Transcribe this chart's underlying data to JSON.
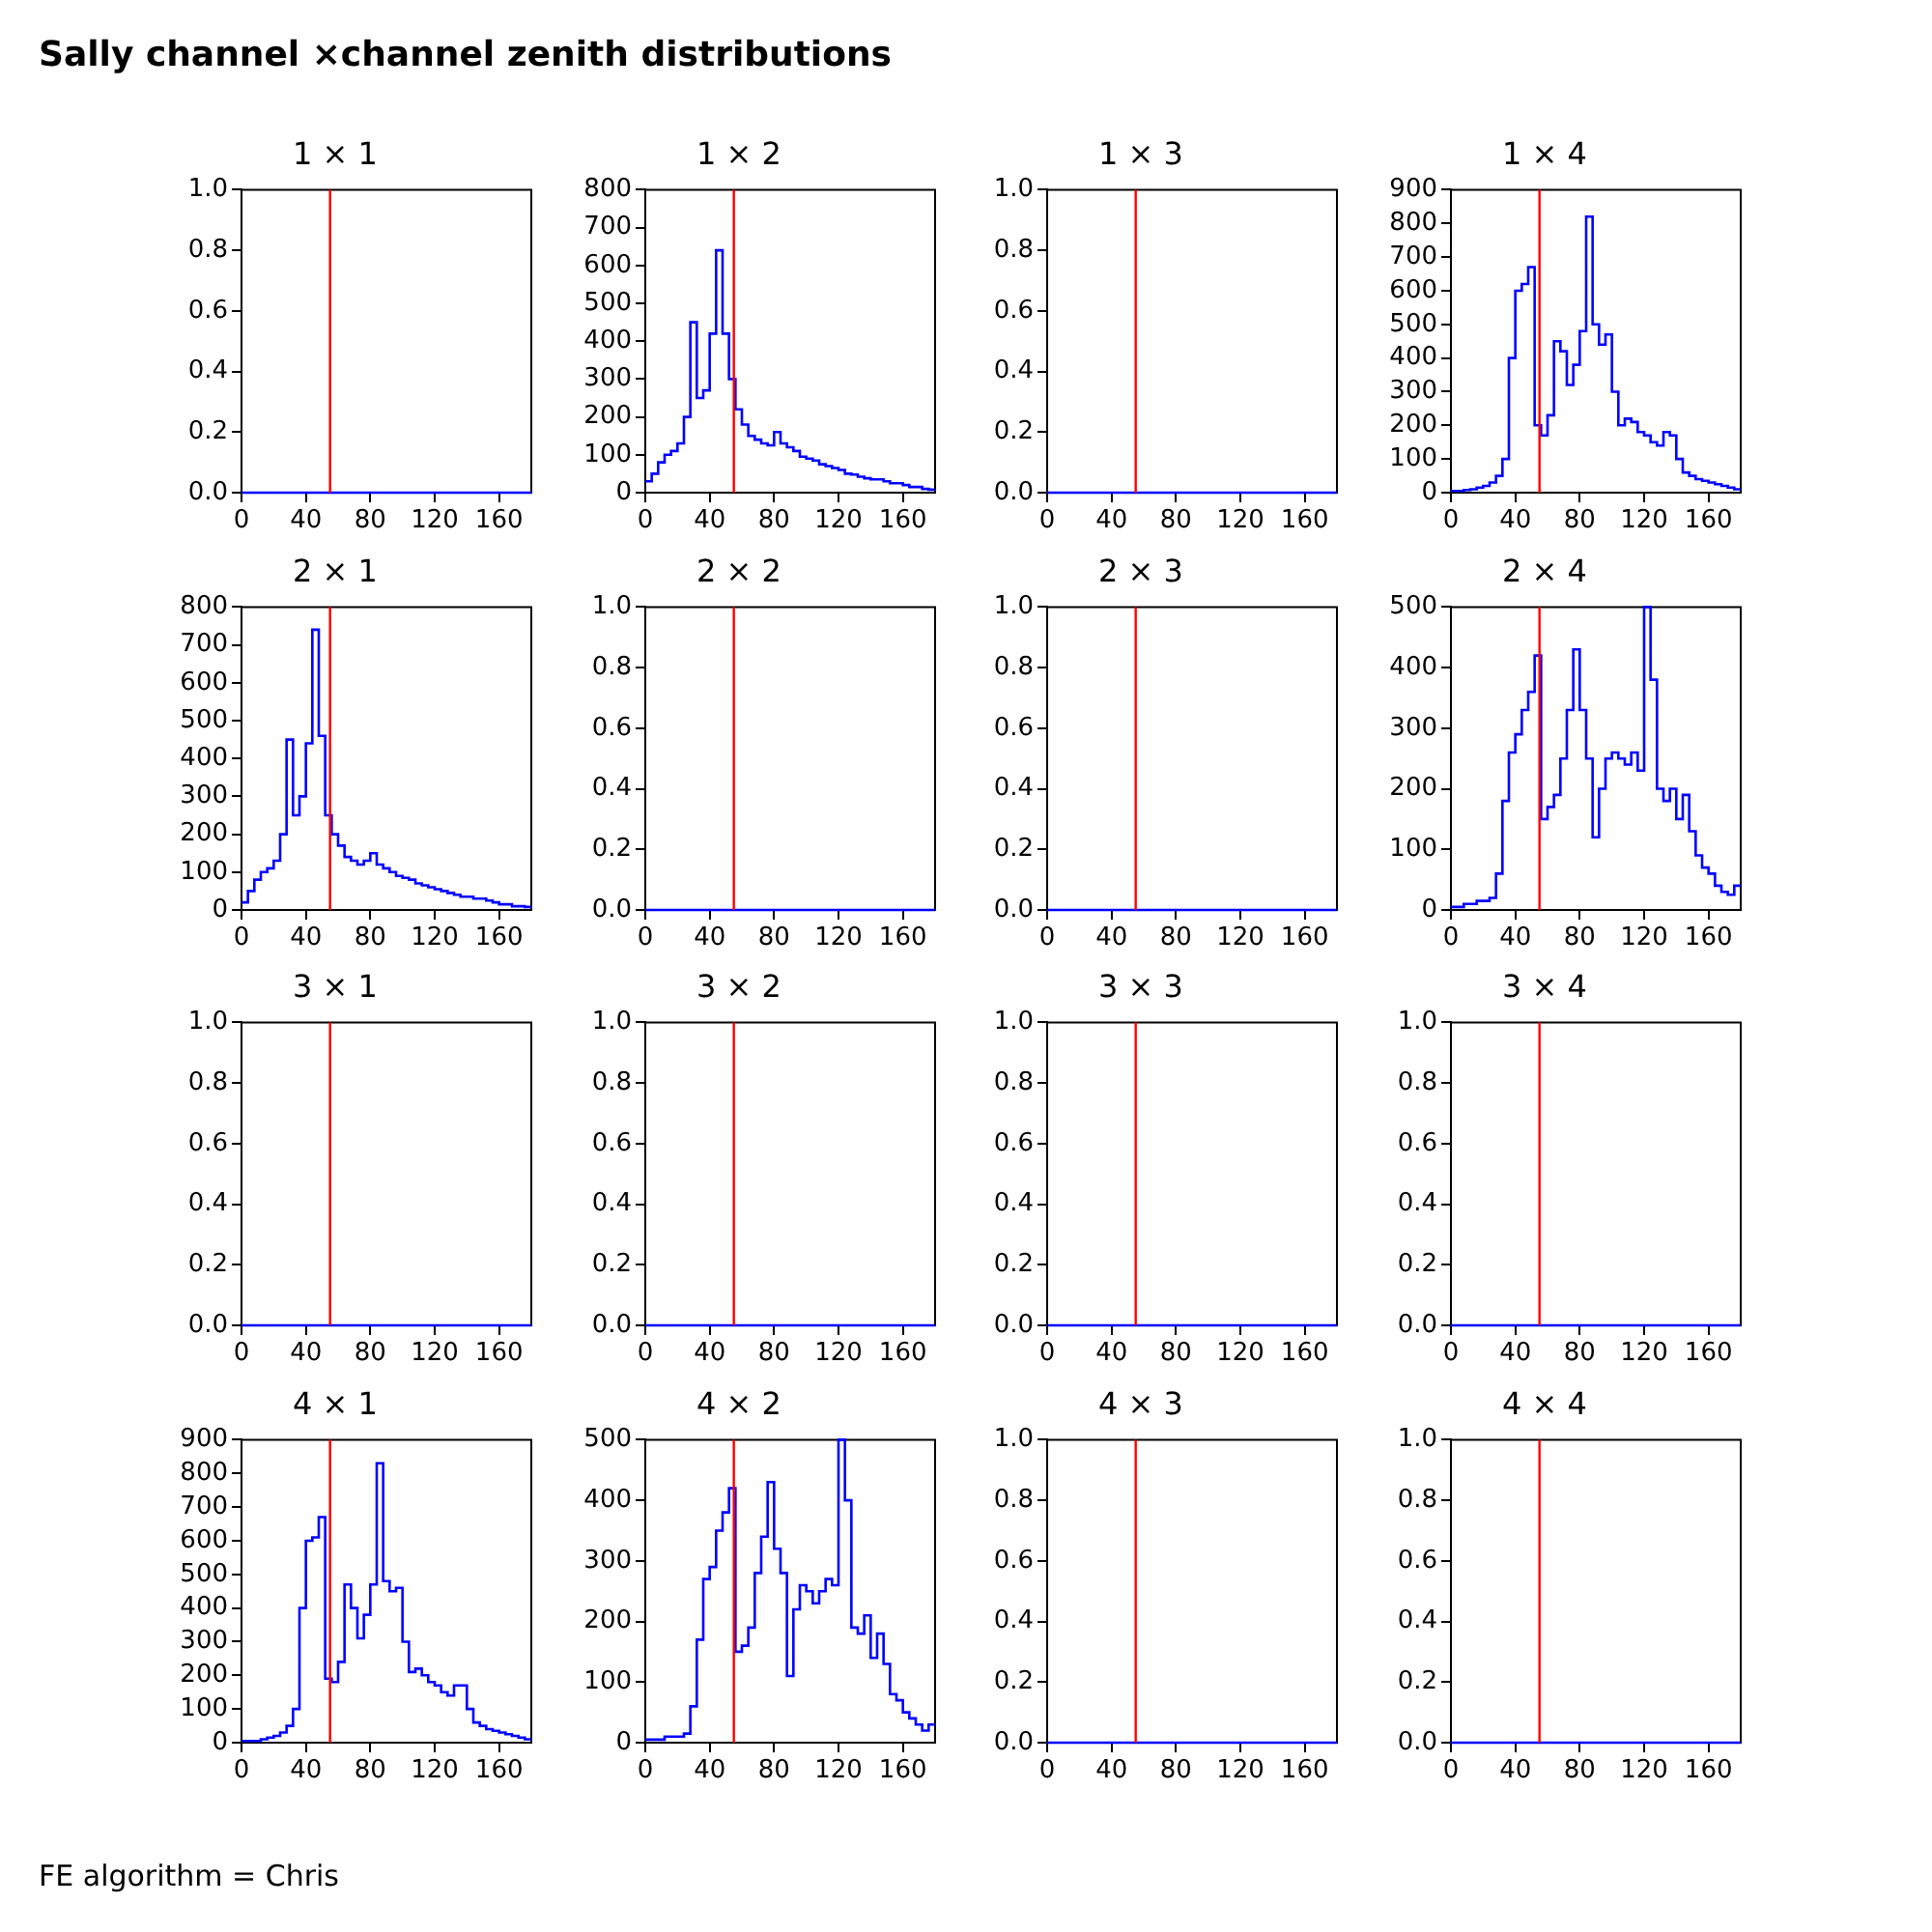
{
  "chart_data": [
    {
      "type": "other",
      "title": "Sally channel ×channel zenith distributions"
    },
    {
      "type": "histogram",
      "title": "1 × 1",
      "bins": [
        0,
        4,
        8,
        12,
        16,
        20,
        24,
        28,
        32,
        36,
        40,
        44,
        48,
        52,
        56,
        60,
        64,
        68,
        72,
        76,
        80,
        84,
        88,
        92,
        96,
        100,
        104,
        108,
        112,
        116,
        120,
        124,
        128,
        132,
        136,
        140,
        144,
        148,
        152,
        156,
        160,
        164,
        168,
        172,
        176,
        180
      ],
      "values": [
        0,
        0,
        0,
        0,
        0,
        0,
        0,
        0,
        0,
        0,
        0,
        0,
        0,
        0,
        0,
        0,
        0,
        0,
        0,
        0,
        0,
        0,
        0,
        0,
        0,
        0,
        0,
        0,
        0,
        0,
        0,
        0,
        0,
        0,
        0,
        0,
        0,
        0,
        0,
        0,
        0,
        0,
        0,
        0,
        0
      ],
      "color": "#0000ff",
      "xlim": [
        0,
        180
      ],
      "xticks": [
        0,
        40,
        80,
        120,
        160
      ],
      "ylim": [
        0,
        1
      ],
      "yticks": [
        {
          "value": 0,
          "label": "0.0"
        },
        {
          "value": 0.2,
          "label": "0.2"
        },
        {
          "value": 0.4,
          "label": "0.4"
        },
        {
          "value": 0.6,
          "label": "0.6"
        },
        {
          "value": 0.8,
          "label": "0.8"
        },
        {
          "value": 1,
          "label": "1.0"
        }
      ],
      "ref_lines": [
        {
          "axis": "x",
          "value": 55,
          "color": "#ff0000"
        }
      ]
    },
    {
      "type": "histogram",
      "title": "1 × 2",
      "bins": [
        0,
        4,
        8,
        12,
        16,
        20,
        24,
        28,
        32,
        36,
        40,
        44,
        48,
        52,
        56,
        60,
        64,
        68,
        72,
        76,
        80,
        84,
        88,
        92,
        96,
        100,
        104,
        108,
        112,
        116,
        120,
        124,
        128,
        132,
        136,
        140,
        144,
        148,
        152,
        156,
        160,
        164,
        168,
        172,
        176,
        180
      ],
      "values": [
        30,
        50,
        80,
        100,
        110,
        130,
        200,
        450,
        250,
        270,
        420,
        640,
        420,
        300,
        220,
        180,
        150,
        140,
        130,
        125,
        160,
        130,
        120,
        110,
        95,
        90,
        85,
        75,
        70,
        65,
        60,
        50,
        48,
        42,
        38,
        35,
        35,
        30,
        25,
        25,
        20,
        15,
        15,
        10,
        8
      ],
      "color": "#0000ff",
      "xlim": [
        0,
        180
      ],
      "xticks": [
        0,
        40,
        80,
        120,
        160
      ],
      "ylim": [
        0,
        800
      ],
      "yticks": [
        0,
        100,
        200,
        300,
        400,
        500,
        600,
        700,
        800
      ],
      "ref_lines": [
        {
          "axis": "x",
          "value": 55,
          "color": "#ff0000"
        }
      ]
    },
    {
      "type": "histogram",
      "title": "1 × 3",
      "bins": [
        0,
        4,
        8,
        12,
        16,
        20,
        24,
        28,
        32,
        36,
        40,
        44,
        48,
        52,
        56,
        60,
        64,
        68,
        72,
        76,
        80,
        84,
        88,
        92,
        96,
        100,
        104,
        108,
        112,
        116,
        120,
        124,
        128,
        132,
        136,
        140,
        144,
        148,
        152,
        156,
        160,
        164,
        168,
        172,
        176,
        180
      ],
      "values": [
        0,
        0,
        0,
        0,
        0,
        0,
        0,
        0,
        0,
        0,
        0,
        0,
        0,
        0,
        0,
        0,
        0,
        0,
        0,
        0,
        0,
        0,
        0,
        0,
        0,
        0,
        0,
        0,
        0,
        0,
        0,
        0,
        0,
        0,
        0,
        0,
        0,
        0,
        0,
        0,
        0,
        0,
        0,
        0,
        0
      ],
      "color": "#0000ff",
      "xlim": [
        0,
        180
      ],
      "xticks": [
        0,
        40,
        80,
        120,
        160
      ],
      "ylim": [
        0,
        1
      ],
      "yticks": [
        {
          "value": 0,
          "label": "0.0"
        },
        {
          "value": 0.2,
          "label": "0.2"
        },
        {
          "value": 0.4,
          "label": "0.4"
        },
        {
          "value": 0.6,
          "label": "0.6"
        },
        {
          "value": 0.8,
          "label": "0.8"
        },
        {
          "value": 1,
          "label": "1.0"
        }
      ],
      "ref_lines": [
        {
          "axis": "x",
          "value": 55,
          "color": "#ff0000"
        }
      ]
    },
    {
      "type": "histogram",
      "title": "1 × 4",
      "bins": [
        0,
        4,
        8,
        12,
        16,
        20,
        24,
        28,
        32,
        36,
        40,
        44,
        48,
        52,
        56,
        60,
        64,
        68,
        72,
        76,
        80,
        84,
        88,
        92,
        96,
        100,
        104,
        108,
        112,
        116,
        120,
        124,
        128,
        132,
        136,
        140,
        144,
        148,
        152,
        156,
        160,
        164,
        168,
        172,
        176,
        180
      ],
      "values": [
        5,
        5,
        8,
        10,
        15,
        20,
        30,
        50,
        100,
        400,
        600,
        620,
        670,
        200,
        170,
        230,
        450,
        420,
        320,
        380,
        480,
        820,
        500,
        440,
        470,
        300,
        200,
        220,
        210,
        180,
        170,
        150,
        140,
        180,
        170,
        100,
        60,
        50,
        40,
        35,
        30,
        25,
        20,
        15,
        10
      ],
      "color": "#0000ff",
      "xlim": [
        0,
        180
      ],
      "xticks": [
        0,
        40,
        80,
        120,
        160
      ],
      "ylim": [
        0,
        900
      ],
      "yticks": [
        0,
        100,
        200,
        300,
        400,
        500,
        600,
        700,
        800,
        900
      ],
      "ref_lines": [
        {
          "axis": "x",
          "value": 55,
          "color": "#ff0000"
        }
      ]
    },
    {
      "type": "histogram",
      "title": "2 × 1",
      "bins": [
        0,
        4,
        8,
        12,
        16,
        20,
        24,
        28,
        32,
        36,
        40,
        44,
        48,
        52,
        56,
        60,
        64,
        68,
        72,
        76,
        80,
        84,
        88,
        92,
        96,
        100,
        104,
        108,
        112,
        116,
        120,
        124,
        128,
        132,
        136,
        140,
        144,
        148,
        152,
        156,
        160,
        164,
        168,
        172,
        176,
        180
      ],
      "values": [
        20,
        50,
        80,
        100,
        110,
        130,
        200,
        450,
        250,
        300,
        440,
        740,
        460,
        250,
        200,
        170,
        140,
        130,
        120,
        130,
        150,
        120,
        110,
        100,
        90,
        85,
        80,
        70,
        65,
        60,
        55,
        50,
        45,
        40,
        35,
        35,
        30,
        30,
        25,
        20,
        15,
        15,
        10,
        10,
        8
      ],
      "color": "#0000ff",
      "xlim": [
        0,
        180
      ],
      "xticks": [
        0,
        40,
        80,
        120,
        160
      ],
      "ylim": [
        0,
        800
      ],
      "yticks": [
        0,
        100,
        200,
        300,
        400,
        500,
        600,
        700,
        800
      ],
      "ref_lines": [
        {
          "axis": "x",
          "value": 55,
          "color": "#ff0000"
        }
      ]
    },
    {
      "type": "histogram",
      "title": "2 × 2",
      "bins": [
        0,
        4,
        8,
        12,
        16,
        20,
        24,
        28,
        32,
        36,
        40,
        44,
        48,
        52,
        56,
        60,
        64,
        68,
        72,
        76,
        80,
        84,
        88,
        92,
        96,
        100,
        104,
        108,
        112,
        116,
        120,
        124,
        128,
        132,
        136,
        140,
        144,
        148,
        152,
        156,
        160,
        164,
        168,
        172,
        176,
        180
      ],
      "values": [
        0,
        0,
        0,
        0,
        0,
        0,
        0,
        0,
        0,
        0,
        0,
        0,
        0,
        0,
        0,
        0,
        0,
        0,
        0,
        0,
        0,
        0,
        0,
        0,
        0,
        0,
        0,
        0,
        0,
        0,
        0,
        0,
        0,
        0,
        0,
        0,
        0,
        0,
        0,
        0,
        0,
        0,
        0,
        0,
        0
      ],
      "color": "#0000ff",
      "xlim": [
        0,
        180
      ],
      "xticks": [
        0,
        40,
        80,
        120,
        160
      ],
      "ylim": [
        0,
        1
      ],
      "yticks": [
        {
          "value": 0,
          "label": "0.0"
        },
        {
          "value": 0.2,
          "label": "0.2"
        },
        {
          "value": 0.4,
          "label": "0.4"
        },
        {
          "value": 0.6,
          "label": "0.6"
        },
        {
          "value": 0.8,
          "label": "0.8"
        },
        {
          "value": 1,
          "label": "1.0"
        }
      ],
      "ref_lines": [
        {
          "axis": "x",
          "value": 55,
          "color": "#ff0000"
        }
      ]
    },
    {
      "type": "histogram",
      "title": "2 × 3",
      "bins": [
        0,
        4,
        8,
        12,
        16,
        20,
        24,
        28,
        32,
        36,
        40,
        44,
        48,
        52,
        56,
        60,
        64,
        68,
        72,
        76,
        80,
        84,
        88,
        92,
        96,
        100,
        104,
        108,
        112,
        116,
        120,
        124,
        128,
        132,
        136,
        140,
        144,
        148,
        152,
        156,
        160,
        164,
        168,
        172,
        176,
        180
      ],
      "values": [
        0,
        0,
        0,
        0,
        0,
        0,
        0,
        0,
        0,
        0,
        0,
        0,
        0,
        0,
        0,
        0,
        0,
        0,
        0,
        0,
        0,
        0,
        0,
        0,
        0,
        0,
        0,
        0,
        0,
        0,
        0,
        0,
        0,
        0,
        0,
        0,
        0,
        0,
        0,
        0,
        0,
        0,
        0,
        0,
        0
      ],
      "color": "#0000ff",
      "xlim": [
        0,
        180
      ],
      "xticks": [
        0,
        40,
        80,
        120,
        160
      ],
      "ylim": [
        0,
        1
      ],
      "yticks": [
        {
          "value": 0,
          "label": "0.0"
        },
        {
          "value": 0.2,
          "label": "0.2"
        },
        {
          "value": 0.4,
          "label": "0.4"
        },
        {
          "value": 0.6,
          "label": "0.6"
        },
        {
          "value": 0.8,
          "label": "0.8"
        },
        {
          "value": 1,
          "label": "1.0"
        }
      ],
      "ref_lines": [
        {
          "axis": "x",
          "value": 55,
          "color": "#ff0000"
        }
      ]
    },
    {
      "type": "histogram",
      "title": "2 × 4",
      "bins": [
        0,
        4,
        8,
        12,
        16,
        20,
        24,
        28,
        32,
        36,
        40,
        44,
        48,
        52,
        56,
        60,
        64,
        68,
        72,
        76,
        80,
        84,
        88,
        92,
        96,
        100,
        104,
        108,
        112,
        116,
        120,
        124,
        128,
        132,
        136,
        140,
        144,
        148,
        152,
        156,
        160,
        164,
        168,
        172,
        176,
        180
      ],
      "values": [
        5,
        5,
        10,
        10,
        15,
        15,
        20,
        60,
        180,
        260,
        290,
        330,
        360,
        420,
        150,
        170,
        190,
        250,
        330,
        430,
        330,
        250,
        120,
        200,
        250,
        260,
        250,
        240,
        260,
        230,
        500,
        380,
        200,
        180,
        200,
        150,
        190,
        130,
        90,
        70,
        60,
        40,
        30,
        25,
        40
      ],
      "color": "#0000ff",
      "xlim": [
        0,
        180
      ],
      "xticks": [
        0,
        40,
        80,
        120,
        160
      ],
      "ylim": [
        0,
        500
      ],
      "yticks": [
        0,
        100,
        200,
        300,
        400,
        500
      ],
      "ref_lines": [
        {
          "axis": "x",
          "value": 55,
          "color": "#ff0000"
        }
      ]
    },
    {
      "type": "histogram",
      "title": "3 × 1",
      "bins": [
        0,
        4,
        8,
        12,
        16,
        20,
        24,
        28,
        32,
        36,
        40,
        44,
        48,
        52,
        56,
        60,
        64,
        68,
        72,
        76,
        80,
        84,
        88,
        92,
        96,
        100,
        104,
        108,
        112,
        116,
        120,
        124,
        128,
        132,
        136,
        140,
        144,
        148,
        152,
        156,
        160,
        164,
        168,
        172,
        176,
        180
      ],
      "values": [
        0,
        0,
        0,
        0,
        0,
        0,
        0,
        0,
        0,
        0,
        0,
        0,
        0,
        0,
        0,
        0,
        0,
        0,
        0,
        0,
        0,
        0,
        0,
        0,
        0,
        0,
        0,
        0,
        0,
        0,
        0,
        0,
        0,
        0,
        0,
        0,
        0,
        0,
        0,
        0,
        0,
        0,
        0,
        0,
        0
      ],
      "color": "#0000ff",
      "xlim": [
        0,
        180
      ],
      "xticks": [
        0,
        40,
        80,
        120,
        160
      ],
      "ylim": [
        0,
        1
      ],
      "yticks": [
        {
          "value": 0,
          "label": "0.0"
        },
        {
          "value": 0.2,
          "label": "0.2"
        },
        {
          "value": 0.4,
          "label": "0.4"
        },
        {
          "value": 0.6,
          "label": "0.6"
        },
        {
          "value": 0.8,
          "label": "0.8"
        },
        {
          "value": 1,
          "label": "1.0"
        }
      ],
      "ref_lines": [
        {
          "axis": "x",
          "value": 55,
          "color": "#ff0000"
        }
      ]
    },
    {
      "type": "histogram",
      "title": "3 × 2",
      "bins": [
        0,
        4,
        8,
        12,
        16,
        20,
        24,
        28,
        32,
        36,
        40,
        44,
        48,
        52,
        56,
        60,
        64,
        68,
        72,
        76,
        80,
        84,
        88,
        92,
        96,
        100,
        104,
        108,
        112,
        116,
        120,
        124,
        128,
        132,
        136,
        140,
        144,
        148,
        152,
        156,
        160,
        164,
        168,
        172,
        176,
        180
      ],
      "values": [
        0,
        0,
        0,
        0,
        0,
        0,
        0,
        0,
        0,
        0,
        0,
        0,
        0,
        0,
        0,
        0,
        0,
        0,
        0,
        0,
        0,
        0,
        0,
        0,
        0,
        0,
        0,
        0,
        0,
        0,
        0,
        0,
        0,
        0,
        0,
        0,
        0,
        0,
        0,
        0,
        0,
        0,
        0,
        0,
        0
      ],
      "color": "#0000ff",
      "xlim": [
        0,
        180
      ],
      "xticks": [
        0,
        40,
        80,
        120,
        160
      ],
      "ylim": [
        0,
        1
      ],
      "yticks": [
        {
          "value": 0,
          "label": "0.0"
        },
        {
          "value": 0.2,
          "label": "0.2"
        },
        {
          "value": 0.4,
          "label": "0.4"
        },
        {
          "value": 0.6,
          "label": "0.6"
        },
        {
          "value": 0.8,
          "label": "0.8"
        },
        {
          "value": 1,
          "label": "1.0"
        }
      ],
      "ref_lines": [
        {
          "axis": "x",
          "value": 55,
          "color": "#ff0000"
        }
      ]
    },
    {
      "type": "histogram",
      "title": "3 × 3",
      "bins": [
        0,
        4,
        8,
        12,
        16,
        20,
        24,
        28,
        32,
        36,
        40,
        44,
        48,
        52,
        56,
        60,
        64,
        68,
        72,
        76,
        80,
        84,
        88,
        92,
        96,
        100,
        104,
        108,
        112,
        116,
        120,
        124,
        128,
        132,
        136,
        140,
        144,
        148,
        152,
        156,
        160,
        164,
        168,
        172,
        176,
        180
      ],
      "values": [
        0,
        0,
        0,
        0,
        0,
        0,
        0,
        0,
        0,
        0,
        0,
        0,
        0,
        0,
        0,
        0,
        0,
        0,
        0,
        0,
        0,
        0,
        0,
        0,
        0,
        0,
        0,
        0,
        0,
        0,
        0,
        0,
        0,
        0,
        0,
        0,
        0,
        0,
        0,
        0,
        0,
        0,
        0,
        0,
        0
      ],
      "color": "#0000ff",
      "xlim": [
        0,
        180
      ],
      "xticks": [
        0,
        40,
        80,
        120,
        160
      ],
      "ylim": [
        0,
        1
      ],
      "yticks": [
        {
          "value": 0,
          "label": "0.0"
        },
        {
          "value": 0.2,
          "label": "0.2"
        },
        {
          "value": 0.4,
          "label": "0.4"
        },
        {
          "value": 0.6,
          "label": "0.6"
        },
        {
          "value": 0.8,
          "label": "0.8"
        },
        {
          "value": 1,
          "label": "1.0"
        }
      ],
      "ref_lines": [
        {
          "axis": "x",
          "value": 55,
          "color": "#ff0000"
        }
      ]
    },
    {
      "type": "histogram",
      "title": "3 × 4",
      "bins": [
        0,
        4,
        8,
        12,
        16,
        20,
        24,
        28,
        32,
        36,
        40,
        44,
        48,
        52,
        56,
        60,
        64,
        68,
        72,
        76,
        80,
        84,
        88,
        92,
        96,
        100,
        104,
        108,
        112,
        116,
        120,
        124,
        128,
        132,
        136,
        140,
        144,
        148,
        152,
        156,
        160,
        164,
        168,
        172,
        176,
        180
      ],
      "values": [
        0,
        0,
        0,
        0,
        0,
        0,
        0,
        0,
        0,
        0,
        0,
        0,
        0,
        0,
        0,
        0,
        0,
        0,
        0,
        0,
        0,
        0,
        0,
        0,
        0,
        0,
        0,
        0,
        0,
        0,
        0,
        0,
        0,
        0,
        0,
        0,
        0,
        0,
        0,
        0,
        0,
        0,
        0,
        0,
        0
      ],
      "color": "#0000ff",
      "xlim": [
        0,
        180
      ],
      "xticks": [
        0,
        40,
        80,
        120,
        160
      ],
      "ylim": [
        0,
        1
      ],
      "yticks": [
        {
          "value": 0,
          "label": "0.0"
        },
        {
          "value": 0.2,
          "label": "0.2"
        },
        {
          "value": 0.4,
          "label": "0.4"
        },
        {
          "value": 0.6,
          "label": "0.6"
        },
        {
          "value": 0.8,
          "label": "0.8"
        },
        {
          "value": 1,
          "label": "1.0"
        }
      ],
      "ref_lines": [
        {
          "axis": "x",
          "value": 55,
          "color": "#ff0000"
        }
      ]
    },
    {
      "type": "histogram",
      "title": "4 × 1",
      "bins": [
        0,
        4,
        8,
        12,
        16,
        20,
        24,
        28,
        32,
        36,
        40,
        44,
        48,
        52,
        56,
        60,
        64,
        68,
        72,
        76,
        80,
        84,
        88,
        92,
        96,
        100,
        104,
        108,
        112,
        116,
        120,
        124,
        128,
        132,
        136,
        140,
        144,
        148,
        152,
        156,
        160,
        164,
        168,
        172,
        176,
        180
      ],
      "values": [
        5,
        5,
        5,
        10,
        15,
        20,
        30,
        50,
        100,
        400,
        600,
        610,
        670,
        190,
        180,
        240,
        470,
        400,
        310,
        380,
        470,
        830,
        480,
        450,
        460,
        300,
        210,
        220,
        200,
        180,
        170,
        150,
        140,
        170,
        170,
        100,
        60,
        50,
        40,
        35,
        30,
        25,
        20,
        15,
        10
      ],
      "color": "#0000ff",
      "xlim": [
        0,
        180
      ],
      "xticks": [
        0,
        40,
        80,
        120,
        160
      ],
      "ylim": [
        0,
        900
      ],
      "yticks": [
        0,
        100,
        200,
        300,
        400,
        500,
        600,
        700,
        800,
        900
      ],
      "ref_lines": [
        {
          "axis": "x",
          "value": 55,
          "color": "#ff0000"
        }
      ]
    },
    {
      "type": "histogram",
      "title": "4 × 2",
      "bins": [
        0,
        4,
        8,
        12,
        16,
        20,
        24,
        28,
        32,
        36,
        40,
        44,
        48,
        52,
        56,
        60,
        64,
        68,
        72,
        76,
        80,
        84,
        88,
        92,
        96,
        100,
        104,
        108,
        112,
        116,
        120,
        124,
        128,
        132,
        136,
        140,
        144,
        148,
        152,
        156,
        160,
        164,
        168,
        172,
        176,
        180
      ],
      "values": [
        5,
        5,
        5,
        10,
        10,
        10,
        15,
        60,
        170,
        270,
        290,
        350,
        380,
        420,
        150,
        160,
        190,
        280,
        340,
        430,
        320,
        280,
        110,
        220,
        260,
        250,
        230,
        250,
        270,
        260,
        500,
        400,
        190,
        180,
        210,
        140,
        180,
        130,
        80,
        70,
        50,
        40,
        30,
        20,
        30
      ],
      "color": "#0000ff",
      "xlim": [
        0,
        180
      ],
      "xticks": [
        0,
        40,
        80,
        120,
        160
      ],
      "ylim": [
        0,
        500
      ],
      "yticks": [
        0,
        100,
        200,
        300,
        400,
        500
      ],
      "ref_lines": [
        {
          "axis": "x",
          "value": 55,
          "color": "#ff0000"
        }
      ]
    },
    {
      "type": "histogram",
      "title": "4 × 3",
      "bins": [
        0,
        4,
        8,
        12,
        16,
        20,
        24,
        28,
        32,
        36,
        40,
        44,
        48,
        52,
        56,
        60,
        64,
        68,
        72,
        76,
        80,
        84,
        88,
        92,
        96,
        100,
        104,
        108,
        112,
        116,
        120,
        124,
        128,
        132,
        136,
        140,
        144,
        148,
        152,
        156,
        160,
        164,
        168,
        172,
        176,
        180
      ],
      "values": [
        0,
        0,
        0,
        0,
        0,
        0,
        0,
        0,
        0,
        0,
        0,
        0,
        0,
        0,
        0,
        0,
        0,
        0,
        0,
        0,
        0,
        0,
        0,
        0,
        0,
        0,
        0,
        0,
        0,
        0,
        0,
        0,
        0,
        0,
        0,
        0,
        0,
        0,
        0,
        0,
        0,
        0,
        0,
        0,
        0
      ],
      "color": "#0000ff",
      "xlim": [
        0,
        180
      ],
      "xticks": [
        0,
        40,
        80,
        120,
        160
      ],
      "ylim": [
        0,
        1
      ],
      "yticks": [
        {
          "value": 0,
          "label": "0.0"
        },
        {
          "value": 0.2,
          "label": "0.2"
        },
        {
          "value": 0.4,
          "label": "0.4"
        },
        {
          "value": 0.6,
          "label": "0.6"
        },
        {
          "value": 0.8,
          "label": "0.8"
        },
        {
          "value": 1,
          "label": "1.0"
        }
      ],
      "ref_lines": [
        {
          "axis": "x",
          "value": 55,
          "color": "#ff0000"
        }
      ]
    },
    {
      "type": "histogram",
      "title": "4 × 4",
      "bins": [
        0,
        4,
        8,
        12,
        16,
        20,
        24,
        28,
        32,
        36,
        40,
        44,
        48,
        52,
        56,
        60,
        64,
        68,
        72,
        76,
        80,
        84,
        88,
        92,
        96,
        100,
        104,
        108,
        112,
        116,
        120,
        124,
        128,
        132,
        136,
        140,
        144,
        148,
        152,
        156,
        160,
        164,
        168,
        172,
        176,
        180
      ],
      "values": [
        0,
        0,
        0,
        0,
        0,
        0,
        0,
        0,
        0,
        0,
        0,
        0,
        0,
        0,
        0,
        0,
        0,
        0,
        0,
        0,
        0,
        0,
        0,
        0,
        0,
        0,
        0,
        0,
        0,
        0,
        0,
        0,
        0,
        0,
        0,
        0,
        0,
        0,
        0,
        0,
        0,
        0,
        0,
        0,
        0
      ],
      "color": "#0000ff",
      "xlim": [
        0,
        180
      ],
      "xticks": [
        0,
        40,
        80,
        120,
        160
      ],
      "ylim": [
        0,
        1
      ],
      "yticks": [
        {
          "value": 0,
          "label": "0.0"
        },
        {
          "value": 0.2,
          "label": "0.2"
        },
        {
          "value": 0.4,
          "label": "0.4"
        },
        {
          "value": 0.6,
          "label": "0.6"
        },
        {
          "value": 0.8,
          "label": "0.8"
        },
        {
          "value": 1,
          "label": "1.0"
        }
      ],
      "ref_lines": [
        {
          "axis": "x",
          "value": 55,
          "color": "#ff0000"
        }
      ]
    },
    {
      "type": "other",
      "annotations": [
        "FE algorithm = Chris"
      ]
    }
  ]
}
